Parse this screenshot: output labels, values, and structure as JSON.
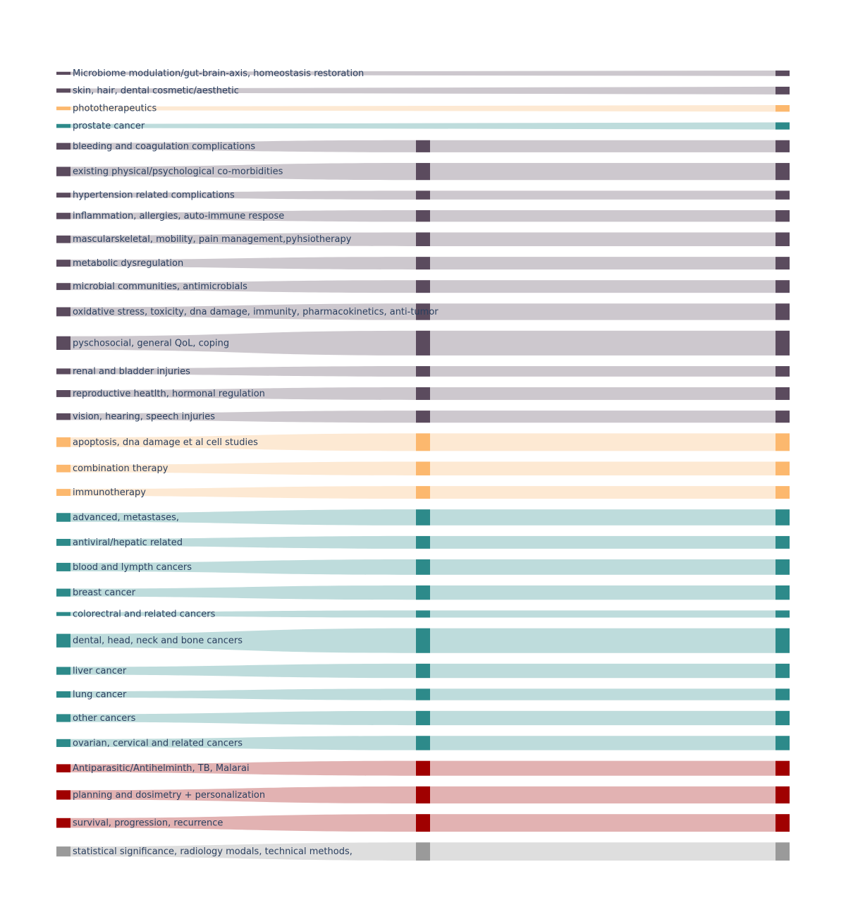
{
  "colors": {
    "purple": "#5b4b5e",
    "purple_link": "#cdc8ce",
    "orange": "#fcb86e",
    "orange_link": "#fde9d3",
    "teal": "#2d8a8a",
    "teal_link": "#bedcdc",
    "red": "#a00000",
    "red_link": "#e2b2b2",
    "gray": "#9a9a9a",
    "gray_link": "#dedede"
  },
  "chart_data": {
    "type": "sankey",
    "title": "",
    "flows": [
      {
        "label": "Microbiome modulation/gut-brain-axis, homeostasis restoration",
        "value": 1.0,
        "group": "purple",
        "direct": true
      },
      {
        "label": "skin, hair, dental cosmetic/aesthetic",
        "value": 1.4,
        "group": "purple",
        "direct": true
      },
      {
        "label": "phototherapeutics",
        "value": 1.2,
        "group": "orange",
        "direct": true
      },
      {
        "label": "prostate cancer",
        "value": 1.3,
        "group": "teal",
        "direct": true
      },
      {
        "label": "bleeding and coagulation complications",
        "value": 2.2,
        "group": "purple"
      },
      {
        "label": "existing physical/psychological co-morbidities",
        "value": 3.1,
        "group": "purple"
      },
      {
        "label": "hypertension related complications",
        "value": 1.6,
        "group": "purple"
      },
      {
        "label": "inflammation, allergies, auto-immune respose",
        "value": 2.1,
        "group": "purple"
      },
      {
        "label": "mascularskeletal, mobility, pain management,pyhsiotherapy",
        "value": 2.5,
        "group": "purple"
      },
      {
        "label": "metabolic dysregulation",
        "value": 2.3,
        "group": "purple"
      },
      {
        "label": "microbial communities, antimicrobials",
        "value": 2.3,
        "group": "purple"
      },
      {
        "label": "oxidative stress, toxicity, dna damage, immunity, pharmacokinetics, anti-tumor",
        "value": 3.0,
        "group": "purple"
      },
      {
        "label": "pyschosocial, general QoL, coping",
        "value": 4.5,
        "group": "purple"
      },
      {
        "label": "renal and bladder injuries",
        "value": 1.9,
        "group": "purple"
      },
      {
        "label": "reproductive heatlth, hormonal regulation",
        "value": 2.3,
        "group": "purple"
      },
      {
        "label": "vision, hearing, speech injuries",
        "value": 2.2,
        "group": "purple"
      },
      {
        "label": "apoptosis, dna damage et al cell studies",
        "value": 3.2,
        "group": "orange"
      },
      {
        "label": "combination therapy",
        "value": 2.5,
        "group": "orange"
      },
      {
        "label": "immunotherapy",
        "value": 2.3,
        "group": "orange"
      },
      {
        "label": "advanced, metastases,",
        "value": 2.9,
        "group": "teal"
      },
      {
        "label": "antiviral/hepatic related",
        "value": 2.3,
        "group": "teal"
      },
      {
        "label": "blood and lympth cancers",
        "value": 2.8,
        "group": "teal"
      },
      {
        "label": "breast cancer",
        "value": 2.6,
        "group": "teal"
      },
      {
        "label": "colorectral and related cancers",
        "value": 1.3,
        "group": "teal"
      },
      {
        "label": "dental, head, neck and bone cancers",
        "value": 4.5,
        "group": "teal"
      },
      {
        "label": "liver cancer",
        "value": 2.6,
        "group": "teal"
      },
      {
        "label": "lung cancer",
        "value": 2.1,
        "group": "teal"
      },
      {
        "label": "other cancers",
        "value": 2.6,
        "group": "teal"
      },
      {
        "label": "ovarian, cervical and related cancers",
        "value": 2.6,
        "group": "teal"
      },
      {
        "label": "Antiparasitic/Antihelminth, TB, Malarai",
        "value": 2.7,
        "group": "red"
      },
      {
        "label": "planning and dosimetry + personalization",
        "value": 3.1,
        "group": "red"
      },
      {
        "label": "survival, progression, recurrence",
        "value": 3.2,
        "group": "red"
      },
      {
        "label": "statistical significance, radiology modals, technical methods,",
        "value": 3.3,
        "group": "gray"
      }
    ]
  }
}
